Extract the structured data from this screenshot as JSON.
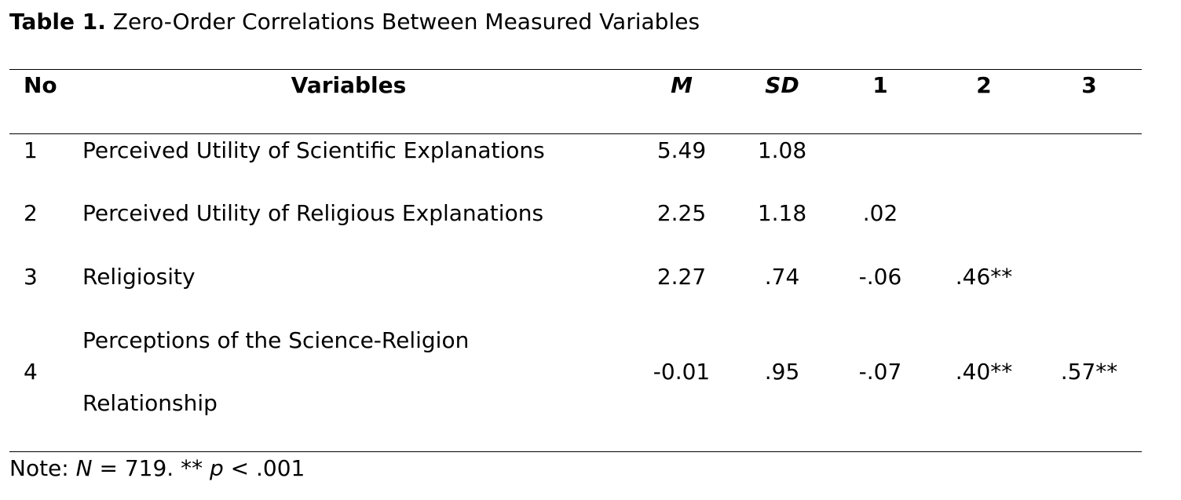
{
  "caption": {
    "label": "Table 1.",
    "title": "Zero-Order Correlations Between Measured Variables"
  },
  "table": {
    "headers": {
      "no": "No",
      "variables": "Variables",
      "m": "M",
      "sd": "SD",
      "c1": "1",
      "c2": "2",
      "c3": "3"
    },
    "rows": [
      {
        "no": "1",
        "variable": "Perceived Utility of Scientific Explanations",
        "m": "5.49",
        "sd": "1.08",
        "c1": "",
        "c2": "",
        "c3": ""
      },
      {
        "no": "2",
        "variable": "Perceived Utility of Religious Explanations",
        "m": "2.25",
        "sd": "1.18",
        "c1": ".02",
        "c2": "",
        "c3": ""
      },
      {
        "no": "3",
        "variable": "Religiosity",
        "m": "2.27",
        "sd": ".74",
        "c1": "-.06",
        "c2": ".46**",
        "c3": ""
      },
      {
        "no": "4",
        "variable_line1": "Perceptions of the Science-Religion",
        "variable_line2": "Relationship",
        "m": "-0.01",
        "sd": ".95",
        "c1": "-.07",
        "c2": ".40**",
        "c3": ".57**"
      }
    ]
  },
  "note": {
    "prefix": "Note: ",
    "n_symbol": "N",
    "n_value": " = 719. ** ",
    "p_symbol": "p",
    "p_value": " < .001"
  }
}
